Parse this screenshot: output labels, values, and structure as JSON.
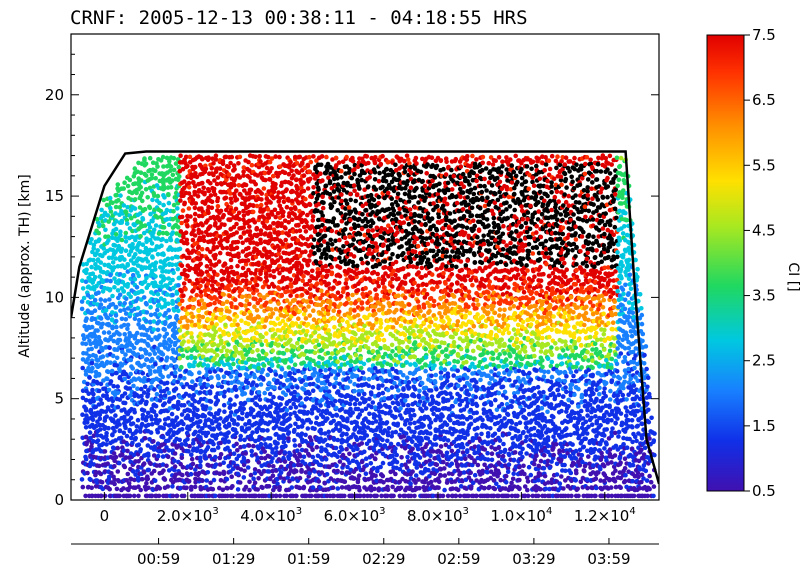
{
  "chart_data": {
    "type": "scatter",
    "title": "CRNF: 2005-12-13 00:38:11 - 04:18:55   HRS",
    "ylabel": "Altitude (approx. TH) [km]",
    "xlim": [
      -800,
      13300
    ],
    "ylim": [
      0,
      23
    ],
    "y_ticks": [
      0,
      5,
      10,
      15,
      20
    ],
    "x_ticks": [
      {
        "value": 0,
        "label": "0"
      },
      {
        "value": 2000,
        "base": "2.0×10",
        "exp": "3"
      },
      {
        "value": 4000,
        "base": "4.0×10",
        "exp": "3"
      },
      {
        "value": 6000,
        "base": "6.0×10",
        "exp": "3"
      },
      {
        "value": 8000,
        "base": "8.0×10",
        "exp": "3"
      },
      {
        "value": 10000,
        "base": "1.0×10",
        "exp": "4"
      },
      {
        "value": 12000,
        "base": "1.2×10",
        "exp": "4"
      }
    ],
    "time_ticks": [
      {
        "value": 1300,
        "label": "00:59"
      },
      {
        "value": 3100,
        "label": "01:29"
      },
      {
        "value": 4900,
        "label": "01:59"
      },
      {
        "value": 6700,
        "label": "02:29"
      },
      {
        "value": 8500,
        "label": "02:59"
      },
      {
        "value": 10300,
        "label": "03:29"
      },
      {
        "value": 12100,
        "label": "03:59"
      }
    ],
    "colorbar": {
      "label": "CI []",
      "range": [
        0.5,
        7.5
      ],
      "ticks": [
        "0.5",
        "1.5",
        "2.5",
        "3.5",
        "4.5",
        "5.5",
        "6.5",
        "7.5"
      ],
      "colors": [
        "#4010b0",
        "#1030e8",
        "#1880ff",
        "#00c8e0",
        "#20d860",
        "#a8e820",
        "#ffe000",
        "#ff9000",
        "#ff3000",
        "#e00000"
      ]
    },
    "flight_altitude": {
      "x": [
        -800,
        -600,
        0,
        500,
        1000,
        12500,
        12700,
        13000,
        13300
      ],
      "y": [
        9,
        11.5,
        15.5,
        17.1,
        17.2,
        17.2,
        11,
        3,
        0.8
      ]
    },
    "legend": "none",
    "grid": false
  }
}
